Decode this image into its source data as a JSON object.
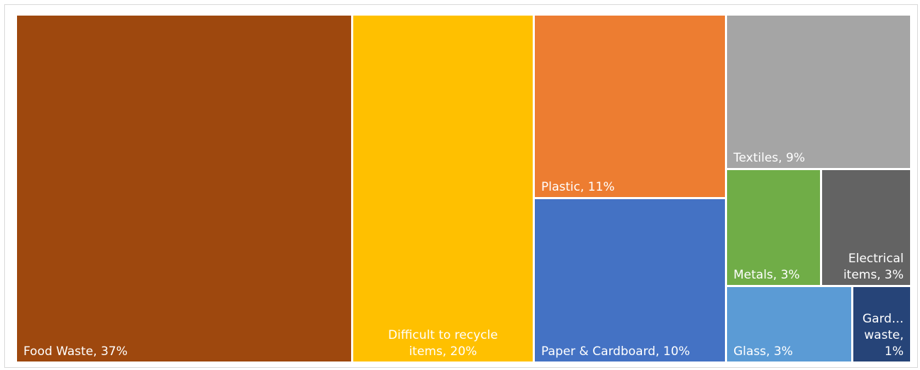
{
  "chart_data": {
    "type": "treemap",
    "items": [
      {
        "name": "Food Waste",
        "value": 37,
        "label_lines": [
          "Food Waste, 37%"
        ],
        "align": "left",
        "color": "#9e480e"
      },
      {
        "name": "Difficult to recycle items",
        "value": 20,
        "label_lines": [
          "Difficult to recycle",
          "items, 20%"
        ],
        "align": "center",
        "color": "#ffc000"
      },
      {
        "name": "Plastic",
        "value": 11,
        "label_lines": [
          "Plastic, 11%"
        ],
        "align": "left",
        "color": "#ed7d31"
      },
      {
        "name": "Paper & Cardboard",
        "value": 10,
        "label_lines": [
          "Paper & Cardboard, 10%"
        ],
        "align": "left",
        "color": "#4472c4"
      },
      {
        "name": "Textiles",
        "value": 9,
        "label_lines": [
          "Textiles, 9%"
        ],
        "align": "left",
        "color": "#a5a5a5"
      },
      {
        "name": "Metals",
        "value": 3,
        "label_lines": [
          "Metals, 3%"
        ],
        "align": "left",
        "color": "#70ad47"
      },
      {
        "name": "Electrical items",
        "value": 3,
        "label_lines": [
          "Electrical",
          "items, 3%"
        ],
        "align": "right",
        "color": "#636363"
      },
      {
        "name": "Glass",
        "value": 3,
        "label_lines": [
          "Glass, 3%"
        ],
        "align": "left",
        "color": "#5b9bd5"
      },
      {
        "name": "Garden waste",
        "value": 1,
        "label_lines": [
          "Gard…",
          "waste,",
          "1%"
        ],
        "align": "right",
        "color": "#264478"
      }
    ]
  }
}
